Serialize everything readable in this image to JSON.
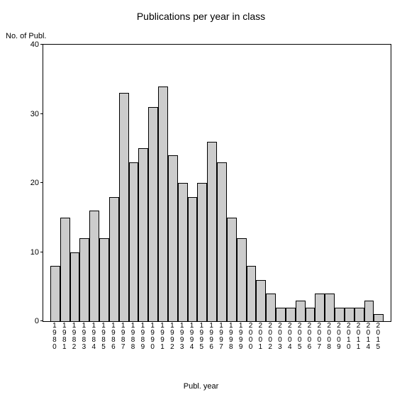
{
  "chart": {
    "type": "bar",
    "title": "Publications per year in class",
    "title_fontsize": 14,
    "ylabel": "No. of Publ.",
    "xlabel": "Publ. year",
    "label_fontsize": 11,
    "background_color": "#ffffff",
    "bar_color": "#cccccc",
    "bar_border_color": "#000000",
    "axis_color": "#000000",
    "ylim": [
      0,
      40
    ],
    "ytick_step": 10,
    "yticks": [
      0,
      10,
      20,
      30,
      40
    ],
    "categories": [
      "1980",
      "1981",
      "1982",
      "1983",
      "1984",
      "1985",
      "1986",
      "1987",
      "1988",
      "1989",
      "1990",
      "1991",
      "1992",
      "1993",
      "1994",
      "1995",
      "1996",
      "1997",
      "1998",
      "1999",
      "2000",
      "2001",
      "2002",
      "2003",
      "2004",
      "2005",
      "2006",
      "2007",
      "2008",
      "2009",
      "2010",
      "2011",
      "2014",
      "2015"
    ],
    "values": [
      8,
      15,
      10,
      12,
      16,
      12,
      18,
      33,
      23,
      25,
      31,
      34,
      24,
      20,
      18,
      20,
      26,
      23,
      15,
      12,
      8,
      6,
      4,
      2,
      2,
      3,
      2,
      4,
      4,
      2,
      2,
      2,
      3,
      1
    ]
  }
}
